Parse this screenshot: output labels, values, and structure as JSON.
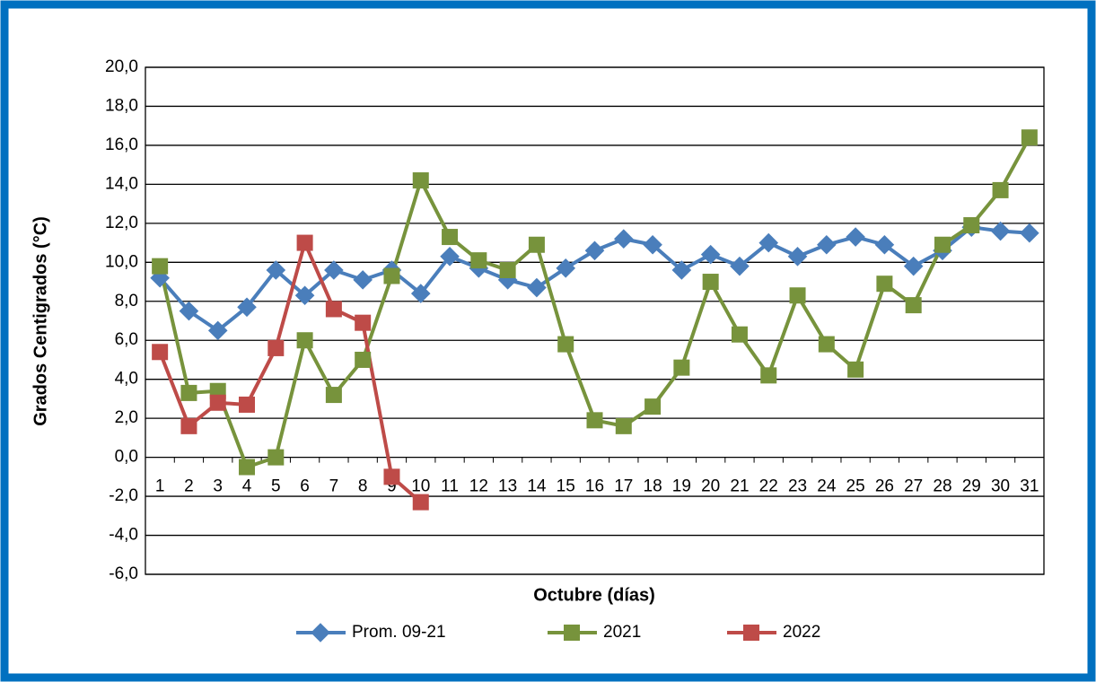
{
  "chart_data": {
    "type": "line",
    "y_label": "Grados Centigrados (°C)",
    "x_label": "Octubre (días)",
    "categories": [
      "1",
      "2",
      "3",
      "4",
      "5",
      "6",
      "7",
      "8",
      "9",
      "10",
      "11",
      "12",
      "13",
      "14",
      "15",
      "16",
      "17",
      "18",
      "19",
      "20",
      "21",
      "22",
      "23",
      "24",
      "25",
      "26",
      "27",
      "28",
      "29",
      "30",
      "31"
    ],
    "series": [
      {
        "name": "Prom. 09-21",
        "color": "#4a7ebb",
        "marker": "diamond",
        "values": [
          9.2,
          7.5,
          6.5,
          7.7,
          9.6,
          8.3,
          9.6,
          9.1,
          9.6,
          8.4,
          10.3,
          9.7,
          9.1,
          8.7,
          9.7,
          10.6,
          11.2,
          10.9,
          9.6,
          10.4,
          9.8,
          11.0,
          10.3,
          10.9,
          11.3,
          10.9,
          9.8,
          10.6,
          11.8,
          11.6,
          11.5
        ]
      },
      {
        "name": "2021",
        "color": "#77933c",
        "marker": "square",
        "values": [
          9.8,
          3.3,
          3.4,
          -0.5,
          0.0,
          6.0,
          3.2,
          5.0,
          9.3,
          14.2,
          11.3,
          10.1,
          9.6,
          10.9,
          5.8,
          1.9,
          1.6,
          2.6,
          4.6,
          9.0,
          6.3,
          4.2,
          8.3,
          5.8,
          4.5,
          8.9,
          7.8,
          10.9,
          11.9,
          13.7,
          16.4
        ]
      },
      {
        "name": "2022",
        "color": "#be4b48",
        "marker": "square",
        "values": [
          5.4,
          1.6,
          2.8,
          2.7,
          5.6,
          11.0,
          7.6,
          6.9,
          -1.0,
          -2.3,
          null,
          null,
          null,
          null,
          null,
          null,
          null,
          null,
          null,
          null,
          null,
          null,
          null,
          null,
          null,
          null,
          null,
          null,
          null,
          null,
          null
        ]
      }
    ],
    "ylim": [
      -6,
      20
    ],
    "yticks": [
      {
        "value": -6,
        "label": "-6,0"
      },
      {
        "value": -4,
        "label": "-4,0"
      },
      {
        "value": -2,
        "label": "-2,0"
      },
      {
        "value": 0,
        "label": "0,0"
      },
      {
        "value": 2,
        "label": "2,0"
      },
      {
        "value": 4,
        "label": "4,0"
      },
      {
        "value": 6,
        "label": "6,0"
      },
      {
        "value": 8,
        "label": "8,0"
      },
      {
        "value": 10,
        "label": "10,0"
      },
      {
        "value": 12,
        "label": "12,0"
      },
      {
        "value": 14,
        "label": "14,0"
      },
      {
        "value": 16,
        "label": "16,0"
      },
      {
        "value": 18,
        "label": "18,0"
      },
      {
        "value": 20,
        "label": "20,0"
      }
    ],
    "grid": true,
    "legend": "bottom"
  }
}
